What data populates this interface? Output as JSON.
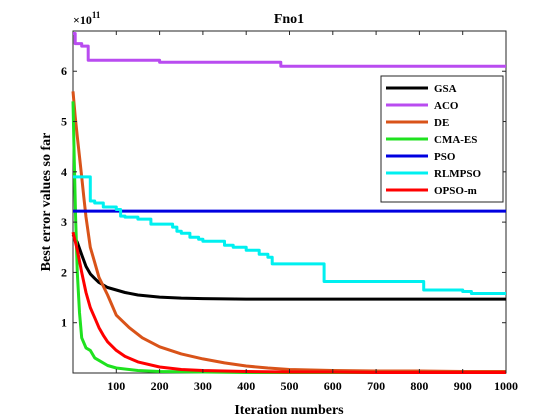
{
  "chart_data": {
    "type": "line",
    "title": "Fno1",
    "xlabel": "Iteration numbers",
    "ylabel": "Best error values so far",
    "exponent_label": "×10",
    "exponent_power": "11",
    "xlim": [
      0,
      1000
    ],
    "ylim": [
      0,
      6.8
    ],
    "x_ticks": [
      100,
      200,
      300,
      400,
      500,
      600,
      700,
      800,
      900,
      1000
    ],
    "x_tick_labels": [
      "100",
      "200",
      "300",
      "400",
      "500",
      "600",
      "700",
      "800",
      "900",
      "1000"
    ],
    "y_ticks": [
      1,
      2,
      3,
      4,
      5,
      6
    ],
    "y_tick_labels": [
      "1",
      "2",
      "3",
      "4",
      "5",
      "6"
    ],
    "grid": false,
    "legend_position": "top-right",
    "series": [
      {
        "name": "GSA",
        "color": "#000000",
        "x": [
          0,
          10,
          20,
          30,
          40,
          50,
          60,
          80,
          100,
          120,
          150,
          200,
          250,
          300,
          400,
          500,
          600,
          700,
          800,
          900,
          1000
        ],
        "y": [
          2.75,
          2.6,
          2.35,
          2.12,
          1.97,
          1.88,
          1.8,
          1.7,
          1.65,
          1.6,
          1.55,
          1.51,
          1.49,
          1.48,
          1.47,
          1.47,
          1.47,
          1.47,
          1.47,
          1.47,
          1.47
        ]
      },
      {
        "name": "ACO",
        "color": "#B94CF0",
        "step": true,
        "x": [
          0,
          5,
          20,
          35,
          200,
          480,
          1000
        ],
        "y": [
          6.75,
          6.55,
          6.5,
          6.22,
          6.18,
          6.1,
          6.1
        ]
      },
      {
        "name": "DE",
        "color": "#D95319",
        "x": [
          0,
          5,
          10,
          15,
          20,
          25,
          30,
          40,
          50,
          60,
          80,
          100,
          130,
          160,
          200,
          250,
          300,
          350,
          400,
          450,
          500,
          600,
          700,
          800,
          900,
          1000
        ],
        "y": [
          5.6,
          5.1,
          4.7,
          4.3,
          3.9,
          3.5,
          3.1,
          2.5,
          2.2,
          1.9,
          1.55,
          1.15,
          0.9,
          0.7,
          0.52,
          0.38,
          0.28,
          0.2,
          0.14,
          0.1,
          0.07,
          0.05,
          0.04,
          0.04,
          0.03,
          0.03
        ]
      },
      {
        "name": "CMA-ES",
        "color": "#1FE21F",
        "x": [
          0,
          3,
          6,
          10,
          15,
          20,
          30,
          40,
          50,
          60,
          80,
          100,
          150,
          200,
          300,
          400,
          500,
          1000
        ],
        "y": [
          5.4,
          4.2,
          3.1,
          2.0,
          1.2,
          0.7,
          0.5,
          0.45,
          0.3,
          0.25,
          0.15,
          0.1,
          0.05,
          0.03,
          0.02,
          0.01,
          0.01,
          0.01
        ]
      },
      {
        "name": "PSO",
        "color": "#0000E0",
        "x": [
          0,
          1000
        ],
        "y": [
          3.22,
          3.22
        ]
      },
      {
        "name": "RLMPSO",
        "color": "#00F0F0",
        "step": true,
        "x": [
          0,
          25,
          40,
          50,
          70,
          100,
          110,
          120,
          150,
          180,
          230,
          240,
          250,
          270,
          290,
          300,
          350,
          370,
          400,
          430,
          450,
          460,
          570,
          580,
          800,
          810,
          900,
          920,
          1000
        ],
        "y": [
          3.9,
          3.9,
          3.42,
          3.38,
          3.3,
          3.25,
          3.12,
          3.1,
          3.06,
          2.96,
          2.9,
          2.82,
          2.78,
          2.7,
          2.66,
          2.62,
          2.54,
          2.5,
          2.44,
          2.36,
          2.3,
          2.17,
          2.17,
          1.82,
          1.82,
          1.65,
          1.62,
          1.58,
          1.58
        ]
      },
      {
        "name": "OPSO-m",
        "color": "#FF0000",
        "x": [
          0,
          10,
          20,
          30,
          40,
          50,
          60,
          70,
          80,
          100,
          120,
          150,
          200,
          250,
          300,
          350,
          400,
          500,
          600,
          700,
          800,
          900,
          1000
        ],
        "y": [
          2.8,
          2.45,
          2.0,
          1.6,
          1.3,
          1.1,
          0.9,
          0.75,
          0.62,
          0.45,
          0.33,
          0.22,
          0.12,
          0.07,
          0.05,
          0.04,
          0.03,
          0.02,
          0.02,
          0.01,
          0.01,
          0.01,
          0.01
        ]
      }
    ]
  }
}
